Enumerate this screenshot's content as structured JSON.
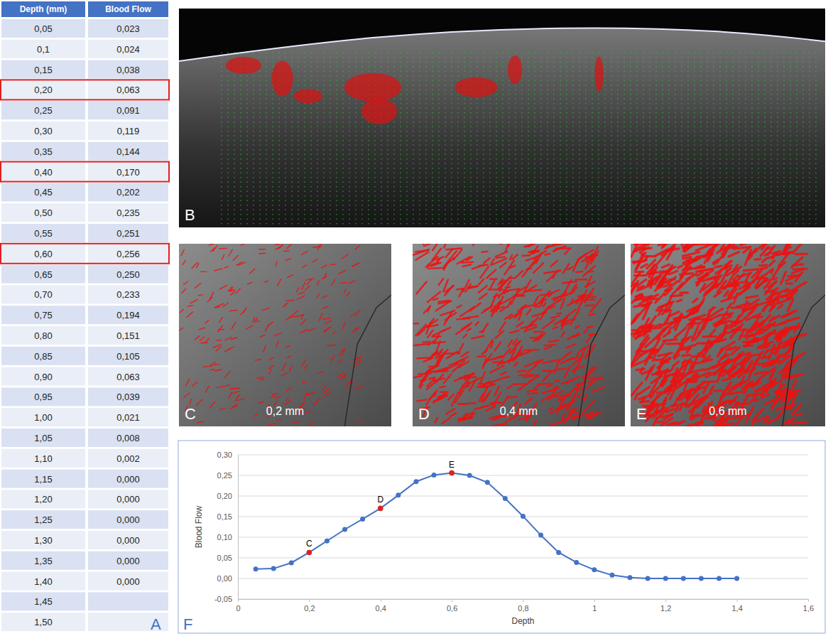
{
  "table": {
    "panel": "A",
    "columns": [
      "Depth (mm)",
      "Blood Flow"
    ],
    "rows": [
      [
        "0,05",
        "0,023"
      ],
      [
        "0,1",
        "0,024"
      ],
      [
        "0,15",
        "0,038"
      ],
      [
        "0,20",
        "0,063"
      ],
      [
        "0,25",
        "0,091"
      ],
      [
        "0,30",
        "0,119"
      ],
      [
        "0,35",
        "0,144"
      ],
      [
        "0,40",
        "0,170"
      ],
      [
        "0,45",
        "0,202"
      ],
      [
        "0,50",
        "0,235"
      ],
      [
        "0,55",
        "0,251"
      ],
      [
        "0,60",
        "0,256"
      ],
      [
        "0,65",
        "0,250"
      ],
      [
        "0,70",
        "0,233"
      ],
      [
        "0,75",
        "0,194"
      ],
      [
        "0,80",
        "0,151"
      ],
      [
        "0,85",
        "0,105"
      ],
      [
        "0,90",
        "0,063"
      ],
      [
        "0,95",
        "0,039"
      ],
      [
        "1,00",
        "0,021"
      ],
      [
        "1,05",
        "0,008"
      ],
      [
        "1,10",
        "0,002"
      ],
      [
        "1,15",
        "0,000"
      ],
      [
        "1,20",
        "0,000"
      ],
      [
        "1,25",
        "0,000"
      ],
      [
        "1,30",
        "0,000"
      ],
      [
        "1,35",
        "0,000"
      ],
      [
        "1,40",
        "0,000"
      ],
      [
        "1,45",
        null
      ],
      [
        "1,50",
        null
      ]
    ],
    "highlighted_rows": [
      "0,20",
      "0,40",
      "0,60"
    ]
  },
  "images": [
    {
      "panel": "B"
    },
    {
      "panel": "C",
      "caption": "0,2 mm"
    },
    {
      "panel": "D",
      "caption": "0,4 mm"
    },
    {
      "panel": "E",
      "caption": "0,6 mm"
    }
  ],
  "chart_panel": "F",
  "chart_data": {
    "type": "line",
    "x_label": "Depth",
    "y_label": "Blood Flow",
    "x": [
      0.05,
      0.1,
      0.15,
      0.2,
      0.25,
      0.3,
      0.35,
      0.4,
      0.45,
      0.5,
      0.55,
      0.6,
      0.65,
      0.7,
      0.75,
      0.8,
      0.85,
      0.9,
      0.95,
      1,
      1.05,
      1.1,
      1.15,
      1.2,
      1.25,
      1.3,
      1.35,
      1.4
    ],
    "series": [
      {
        "color": "#4472c4",
        "marker": "circle",
        "values": [
          0.023,
          0.024,
          0.038,
          0.063,
          0.091,
          0.119,
          0.144,
          0.17,
          0.202,
          0.235,
          0.251,
          0.256,
          0.25,
          0.233,
          0.194,
          0.151,
          0.105,
          0.063,
          0.039,
          0.021,
          0.008,
          0.002,
          0,
          0,
          0,
          0,
          0,
          0
        ]
      }
    ],
    "annotations": [
      {
        "text": "C",
        "x": 0.2,
        "y": 0.063
      },
      {
        "text": "D",
        "x": 0.4,
        "y": 0.17
      },
      {
        "text": "E",
        "x": 0.6,
        "y": 0.256
      }
    ],
    "xlim": [
      0,
      1.6
    ],
    "xticks": [
      0,
      {
        "value": 0.2,
        "label": "0,2"
      },
      {
        "value": 0.4,
        "label": "0,4"
      },
      {
        "value": 0.6,
        "label": "0,6"
      },
      {
        "value": 0.8,
        "label": "0,8"
      },
      1,
      {
        "value": 1.2,
        "label": "1,2"
      },
      {
        "value": 1.4,
        "label": "1,4"
      },
      {
        "value": 1.6,
        "label": "1,6"
      }
    ],
    "ylim": [
      -0.05,
      0.3
    ],
    "yticks": [
      {
        "value": -0.05,
        "label": "-0,05"
      },
      {
        "value": 0,
        "label": "0,00"
      },
      {
        "value": 0.05,
        "label": "0,05"
      },
      {
        "value": 0.1,
        "label": "0,10"
      },
      {
        "value": 0.15,
        "label": "0,15"
      },
      {
        "value": 0.2,
        "label": "0,20"
      },
      {
        "value": 0.25,
        "label": "0,25"
      },
      {
        "value": 0.3,
        "label": "0,30"
      }
    ],
    "grid": true
  }
}
